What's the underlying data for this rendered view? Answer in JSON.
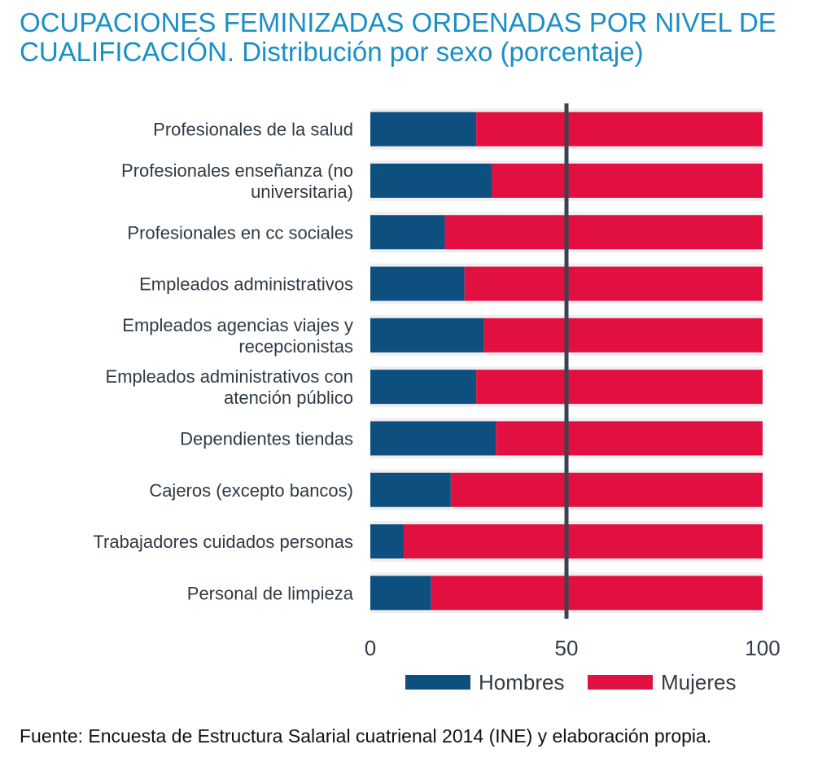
{
  "title_line1": "OCUPACIONES FEMINIZADAS ORDENADAS POR NIVEL DE",
  "title_line2": "CUALIFICACIÓN. Distribución por sexo (porcentaje)",
  "source": "Fuente: Encuesta de Estructura Salarial cuatrienal 2014 (INE) y elaboración propia.",
  "colors": {
    "title": "#1a8fc6",
    "hombres": "#0d4f7e",
    "mujeres": "#e21040",
    "band": "#eeeff1",
    "reference_line": "#3a4450",
    "label_text": "#2e3a44"
  },
  "chart_data": {
    "type": "bar",
    "orientation": "horizontal",
    "stacked": true,
    "categories": [
      [
        "Profesionales de la salud"
      ],
      [
        "Profesionales enseñanza (no",
        "universitaria)"
      ],
      [
        "Profesionales en cc sociales"
      ],
      [
        "Empleados administrativos"
      ],
      [
        "Empleados agencias viajes y",
        "recepcionistas"
      ],
      [
        "Empleados administrativos con",
        "atención público"
      ],
      [
        "Dependientes tiendas"
      ],
      [
        "Cajeros (excepto bancos)"
      ],
      [
        "Trabajadores cuidados personas"
      ],
      [
        "Personal de limpieza"
      ]
    ],
    "series": [
      {
        "name": "Hombres",
        "values": [
          27,
          31,
          19,
          24,
          29,
          27,
          32,
          20.5,
          8.5,
          15.5
        ]
      },
      {
        "name": "Mujeres",
        "values": [
          73,
          69,
          81,
          76,
          71,
          73,
          68,
          79.5,
          91.5,
          84.5
        ]
      }
    ],
    "xlim": [
      0,
      100
    ],
    "x_ticks": [
      "0",
      "50",
      "100"
    ],
    "reference_line": 50,
    "legend": "bottom"
  }
}
